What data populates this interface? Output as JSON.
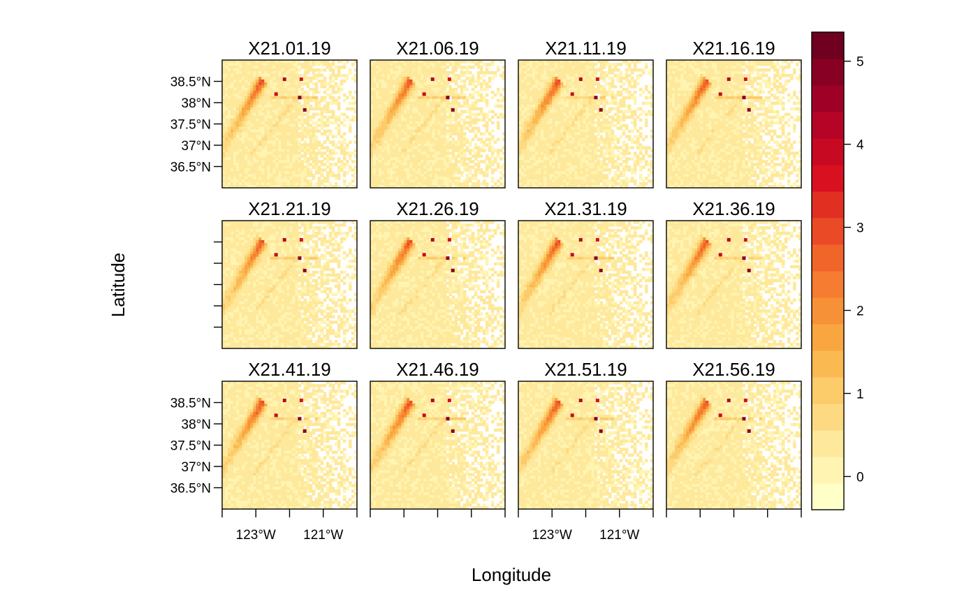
{
  "chart_data": {
    "type": "heatmap",
    "xlabel": "Longitude",
    "ylabel": "Latitude",
    "layout": {
      "rows": 3,
      "cols": 4
    },
    "panels": [
      {
        "title": "X21.01.19"
      },
      {
        "title": "X21.06.19"
      },
      {
        "title": "X21.11.19"
      },
      {
        "title": "X21.16.19"
      },
      {
        "title": "X21.21.19"
      },
      {
        "title": "X21.26.19"
      },
      {
        "title": "X21.31.19"
      },
      {
        "title": "X21.36.19"
      },
      {
        "title": "X21.41.19"
      },
      {
        "title": "X21.46.19"
      },
      {
        "title": "X21.51.19"
      },
      {
        "title": "X21.56.19"
      }
    ],
    "y_ticks": [
      {
        "value": 38.5,
        "label": "38.5°N"
      },
      {
        "value": 38.0,
        "label": "38°N"
      },
      {
        "value": 37.5,
        "label": "37.5°N"
      },
      {
        "value": 37.0,
        "label": "37°N"
      },
      {
        "value": 36.5,
        "label": "36.5°N"
      }
    ],
    "x_ticks": [
      {
        "value": -124,
        "label": ""
      },
      {
        "value": -123,
        "label": "123°W"
      },
      {
        "value": -122,
        "label": ""
      },
      {
        "value": -121,
        "label": "121°W"
      },
      {
        "value": -120,
        "label": ""
      }
    ],
    "xlim": [
      -124.0,
      -120.0
    ],
    "ylim": [
      36.0,
      39.0
    ],
    "colorbar": {
      "range": [
        -0.4,
        5.35
      ],
      "ticks": [
        0,
        1,
        2,
        3,
        4,
        5
      ],
      "tick_labels": [
        "0",
        "1",
        "2",
        "3",
        "4",
        "5"
      ],
      "colors": [
        "#FFFFC8",
        "#FFF4B1",
        "#FEE89B",
        "#FDDA82",
        "#FCCB6A",
        "#FBB951",
        "#F9A641",
        "#F79137",
        "#F57C30",
        "#F1652B",
        "#EA4B26",
        "#E13022",
        "#D8101F",
        "#C70922",
        "#B50426",
        "#9F0026",
        "#880023",
        "#6F0020"
      ]
    },
    "features": {
      "ridge_peak": {
        "lon": -122.95,
        "lat": 38.45,
        "value": 2.8
      },
      "hotspots": [
        {
          "lon": -122.15,
          "lat": 38.55,
          "value": 4.3
        },
        {
          "lon": -121.65,
          "lat": 38.55,
          "value": 3.5
        },
        {
          "lon": -122.4,
          "lat": 38.2,
          "value": 4.0
        },
        {
          "lon": -121.7,
          "lat": 38.12,
          "value": 5.0
        },
        {
          "lon": -121.55,
          "lat": 37.83,
          "value": 5.0
        }
      ],
      "background_value": 0.3
    }
  }
}
